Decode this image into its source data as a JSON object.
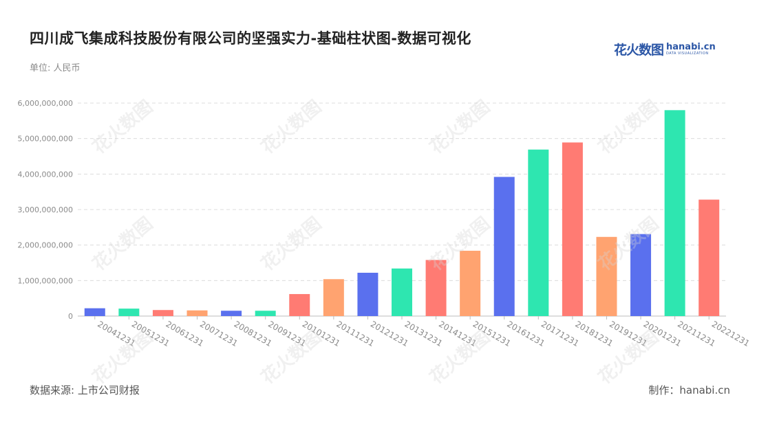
{
  "title": "四川成飞集成科技股份有限公司的坚强实力-基础柱状图-数据可视化",
  "unit": "单位: 人民币",
  "logo": {
    "cn": "花火数图",
    "en": "hanabi.cn",
    "sub": "DATA VISUALIZATION"
  },
  "source": "数据来源: 上市公司财报",
  "maker": "制作：hanabi.cn",
  "watermark": "花火数图",
  "chart_data": {
    "type": "bar",
    "title": "",
    "xlabel": "",
    "ylabel": "",
    "ylim": [
      0,
      6000000000
    ],
    "yticks": [
      0,
      1000000000,
      2000000000,
      3000000000,
      4000000000,
      5000000000,
      6000000000
    ],
    "ytick_labels": [
      "0",
      "1,000,000,000",
      "2,000,000,000",
      "3,000,000,000",
      "4,000,000,000",
      "5,000,000,000",
      "6,000,000,000"
    ],
    "grid": true,
    "categories": [
      "20041231",
      "20051231",
      "20061231",
      "20071231",
      "20081231",
      "20091231",
      "20101231",
      "20111231",
      "20121231",
      "20131231",
      "20141231",
      "20151231",
      "20161231",
      "20171231",
      "20181231",
      "20191231",
      "20201231",
      "20211231",
      "20221231"
    ],
    "values": [
      220000000,
      210000000,
      170000000,
      160000000,
      150000000,
      150000000,
      620000000,
      1040000000,
      1220000000,
      1340000000,
      1580000000,
      1840000000,
      3920000000,
      4690000000,
      4890000000,
      2230000000,
      2310000000,
      5800000000,
      3280000000
    ],
    "colors": [
      "#5a70ee",
      "#2ee6b0",
      "#ff7b73",
      "#ffa370"
    ]
  }
}
